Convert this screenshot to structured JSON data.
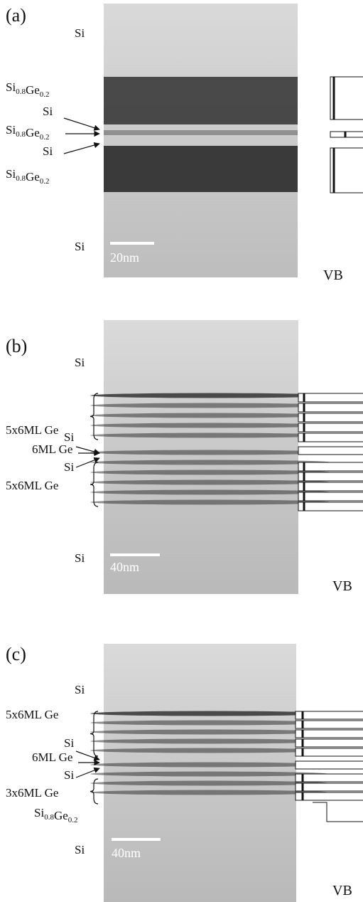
{
  "panels": [
    {
      "label": "(a)",
      "top_layer": "Si",
      "bottom_layer": "Si",
      "scale_bar": "20nm",
      "band": "VB",
      "layers": [
        [
          [
            "Si",
            "0.8"
          ],
          [
            "Ge",
            "0.2"
          ]
        ],
        "Si",
        [
          [
            "Si",
            "0.8"
          ],
          [
            "Ge",
            "0.2"
          ]
        ],
        "Si",
        [
          [
            "Si",
            "0.8"
          ],
          [
            "Ge",
            "0.2"
          ]
        ]
      ]
    },
    {
      "label": "(b)",
      "top_layer": "Si",
      "bottom_layer": "Si",
      "scale_bar": "40nm",
      "band": "VB",
      "layers": [
        "5x6ML  Ge",
        "Si",
        "6ML Ge",
        "Si",
        "5x6ML  Ge"
      ]
    },
    {
      "label": "(c)",
      "top_layer": "Si",
      "bottom_layer": "Si",
      "scale_bar": "40nm",
      "band": "VB",
      "layers": [
        "5x6ML  Ge",
        "Si",
        "6ML Ge",
        "Si",
        "3x6ML  Ge",
        [
          [
            "Si",
            "0.8"
          ],
          [
            "Ge",
            "0.2"
          ]
        ]
      ]
    }
  ]
}
